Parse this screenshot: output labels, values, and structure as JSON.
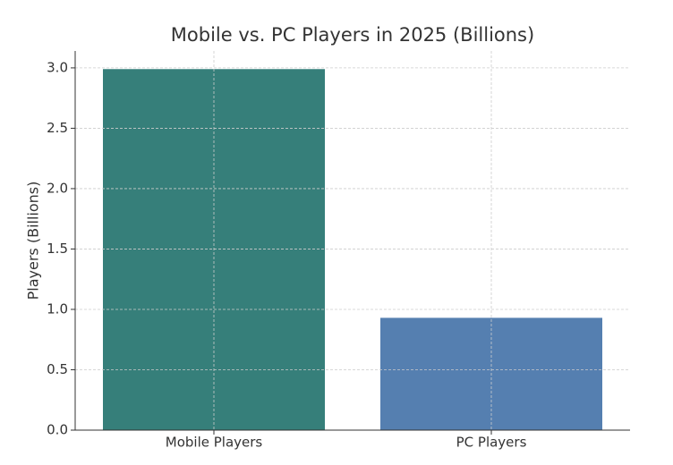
{
  "chart_data": {
    "type": "bar",
    "title": "Mobile vs. PC Players in 2025 (Billions)",
    "y_label": "Players (Billions)",
    "categories": [
      "Mobile Players",
      "PC Players"
    ],
    "values": [
      2.99,
      0.93
    ],
    "colors": [
      "#367f7a",
      "#557fb0"
    ],
    "ylim": [
      0,
      3.14
    ],
    "yticks": [
      {
        "value": 0,
        "label": "0.0"
      },
      0.5,
      {
        "value": 1,
        "label": "1.0"
      },
      1.5,
      {
        "value": 2,
        "label": "2.0"
      },
      2.5,
      {
        "value": 3,
        "label": "3.0"
      }
    ],
    "grid": true
  }
}
